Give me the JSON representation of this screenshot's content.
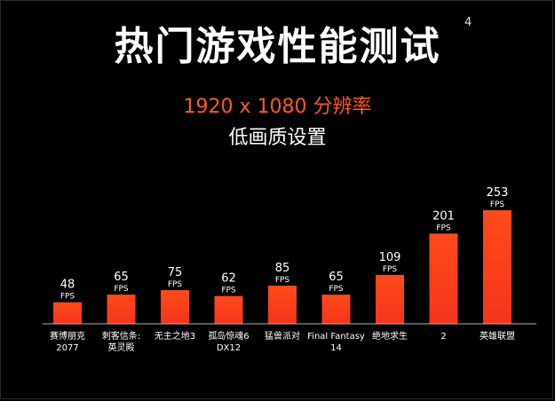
{
  "header": {
    "title": "热门游戏性能测试",
    "footnote": "4",
    "subtitle": "1920 x 1080 分辨率",
    "subtitle2": "低画质设置"
  },
  "colors": {
    "background": "#000000",
    "bar_top": "#ff4a1a",
    "bar_bottom": "#f4351c",
    "accent": "#ff5a1f"
  },
  "chart_data": {
    "type": "bar",
    "title": "热门游戏性能测试",
    "subtitle": "1920 x 1080 分辨率 低画质设置",
    "unit": "FPS",
    "categories": [
      [
        "赛博朋克",
        "2077"
      ],
      [
        "刺客信条:",
        "英灵殿"
      ],
      [
        "无主之地3"
      ],
      [
        "孤岛惊魂6",
        "DX12"
      ],
      [
        "猛兽派对"
      ],
      [
        "Final Fantasy",
        "14"
      ],
      [
        "绝地求生"
      ],
      [
        "2"
      ],
      [
        "英雄联盟"
      ]
    ],
    "values": [
      48,
      65,
      75,
      62,
      85,
      65,
      109,
      201,
      253
    ],
    "ylim": [
      0,
      253
    ],
    "grid": false,
    "legend": "none"
  }
}
